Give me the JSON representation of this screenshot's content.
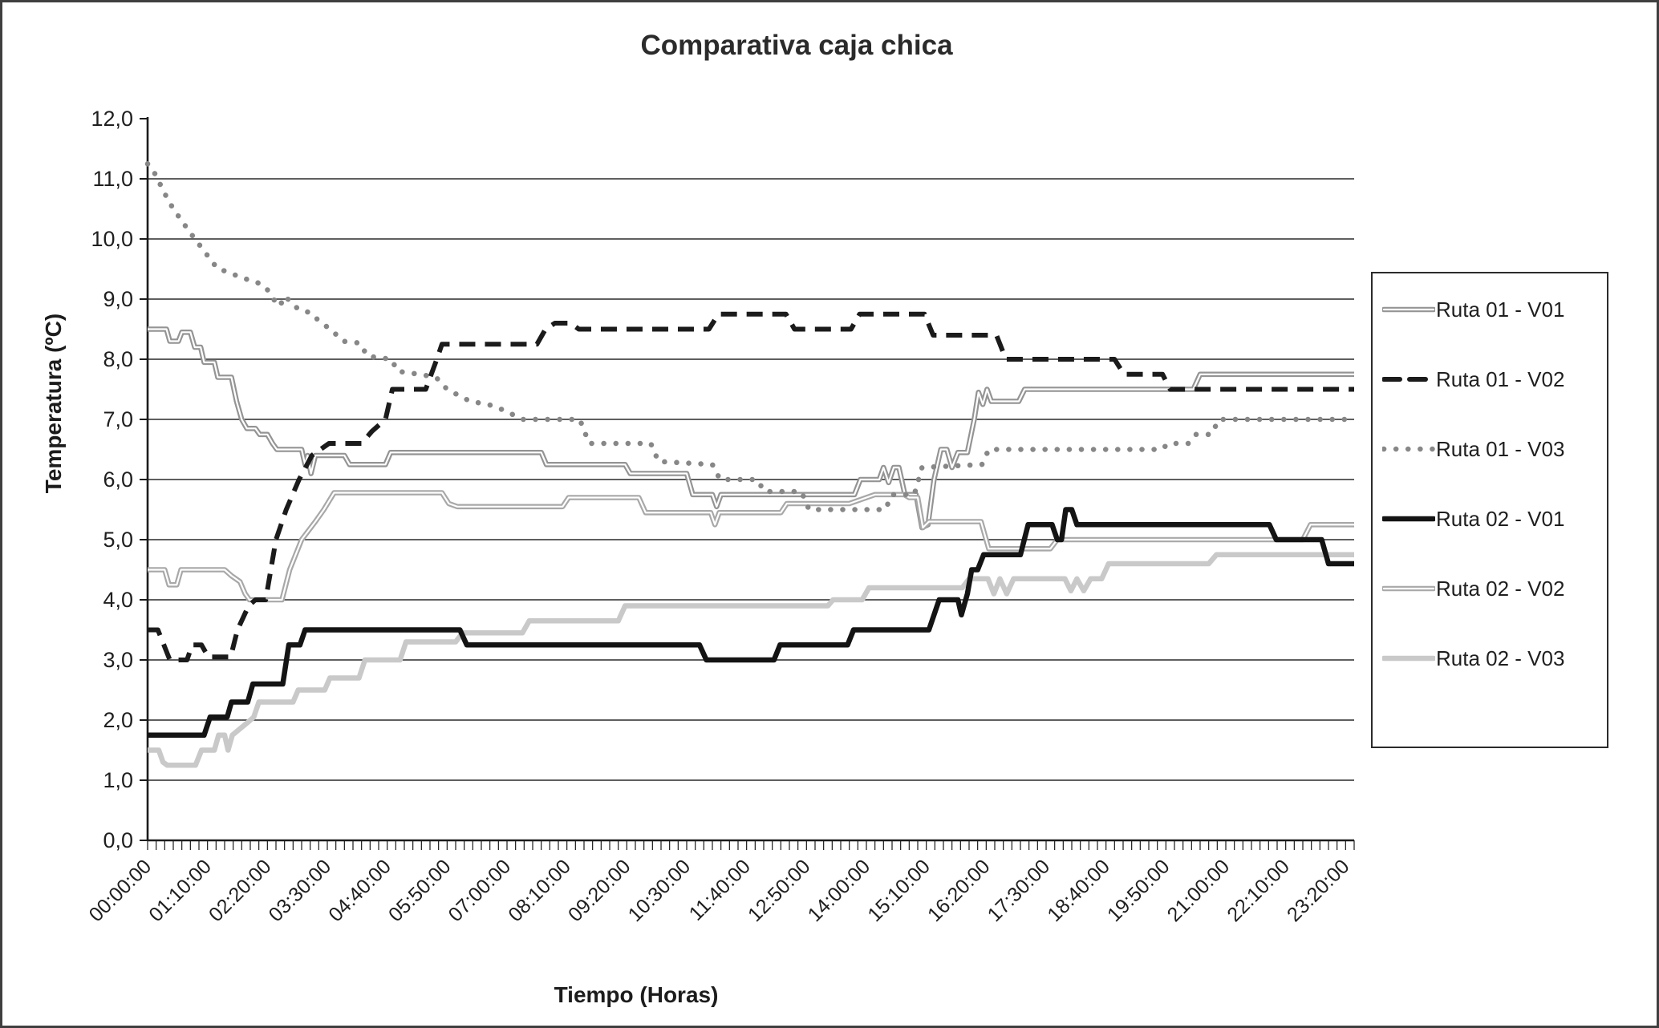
{
  "title": "Comparativa caja chica",
  "y_axis": {
    "title": "Temperatura (ºC)",
    "tick_labels": [
      "0,0",
      "1,0",
      "2,0",
      "3,0",
      "4,0",
      "5,0",
      "6,0",
      "7,0",
      "8,0",
      "9,0",
      "10,0",
      "11,0",
      "12,0"
    ],
    "min": 0,
    "max": 12,
    "grid": "horizontal lines at every 1.0 from 1.0 to 11.0"
  },
  "x_axis": {
    "title": "Tiempo (Horas)",
    "tick_labels": [
      "00:00:00",
      "01:10:00",
      "02:20:00",
      "03:30:00",
      "04:40:00",
      "05:50:00",
      "07:00:00",
      "08:10:00",
      "09:20:00",
      "10:30:00",
      "11:40:00",
      "12:50:00",
      "14:00:00",
      "15:10:00",
      "16:20:00",
      "17:30:00",
      "18:40:00",
      "19:50:00",
      "21:00:00",
      "22:10:00",
      "23:20:00"
    ],
    "label_interval_minutes": 70,
    "minor_tick_minutes": 10,
    "domain_minutes": [
      0,
      1410
    ]
  },
  "colors": {
    "background": "#ffffff",
    "frame_border": "#3f3f3f",
    "gridline": "#2a2a2a",
    "axis": "#1b1b1b",
    "text": "#1f1f1f"
  },
  "chart_data": {
    "type": "line",
    "title": "Comparativa caja chica",
    "xlabel": "Tiempo (Horas)",
    "ylabel": "Temperatura (ºC)",
    "ylim": [
      0,
      12
    ],
    "x_unit": "minutes_since_midnight",
    "legend_position": "right",
    "series": [
      {
        "name": "Ruta 01 - V01",
        "line_style": "double",
        "color": "#949494",
        "points": [
          [
            0,
            8.5
          ],
          [
            22,
            8.5
          ],
          [
            26,
            8.3
          ],
          [
            36,
            8.3
          ],
          [
            40,
            8.45
          ],
          [
            50,
            8.45
          ],
          [
            55,
            8.2
          ],
          [
            62,
            8.2
          ],
          [
            66,
            7.95
          ],
          [
            78,
            7.95
          ],
          [
            82,
            7.7
          ],
          [
            98,
            7.7
          ],
          [
            104,
            7.3
          ],
          [
            110,
            7.0
          ],
          [
            116,
            6.85
          ],
          [
            126,
            6.85
          ],
          [
            131,
            6.75
          ],
          [
            140,
            6.75
          ],
          [
            146,
            6.6
          ],
          [
            151,
            6.5
          ],
          [
            180,
            6.5
          ],
          [
            184,
            6.25
          ],
          [
            187,
            6.4
          ],
          [
            191,
            6.1
          ],
          [
            196,
            6.4
          ],
          [
            230,
            6.4
          ],
          [
            236,
            6.25
          ],
          [
            278,
            6.25
          ],
          [
            284,
            6.45
          ],
          [
            460,
            6.45
          ],
          [
            466,
            6.25
          ],
          [
            558,
            6.25
          ],
          [
            564,
            6.1
          ],
          [
            630,
            6.1
          ],
          [
            637,
            5.75
          ],
          [
            660,
            5.75
          ],
          [
            665,
            5.55
          ],
          [
            670,
            5.75
          ],
          [
            826,
            5.75
          ],
          [
            833,
            6.0
          ],
          [
            855,
            6.0
          ],
          [
            860,
            6.2
          ],
          [
            866,
            5.95
          ],
          [
            872,
            6.2
          ],
          [
            878,
            6.2
          ],
          [
            885,
            5.75
          ],
          [
            898,
            5.75
          ],
          [
            905,
            5.2
          ],
          [
            912,
            5.25
          ],
          [
            919,
            6.0
          ],
          [
            927,
            6.5
          ],
          [
            934,
            6.5
          ],
          [
            940,
            6.2
          ],
          [
            947,
            6.45
          ],
          [
            958,
            6.45
          ],
          [
            966,
            7.0
          ],
          [
            971,
            7.45
          ],
          [
            976,
            7.25
          ],
          [
            981,
            7.5
          ],
          [
            986,
            7.3
          ],
          [
            1018,
            7.3
          ],
          [
            1025,
            7.5
          ],
          [
            1222,
            7.5
          ],
          [
            1230,
            7.75
          ],
          [
            1410,
            7.75
          ]
        ]
      },
      {
        "name": "Ruta 01 - V02",
        "line_style": "dashed",
        "color": "#1b1b1b",
        "points": [
          [
            0,
            3.5
          ],
          [
            12,
            3.5
          ],
          [
            19,
            3.25
          ],
          [
            26,
            3.0
          ],
          [
            46,
            3.0
          ],
          [
            52,
            3.25
          ],
          [
            63,
            3.25
          ],
          [
            71,
            3.05
          ],
          [
            97,
            3.05
          ],
          [
            105,
            3.5
          ],
          [
            118,
            3.9
          ],
          [
            126,
            4.0
          ],
          [
            138,
            4.0
          ],
          [
            150,
            5.0
          ],
          [
            162,
            5.5
          ],
          [
            177,
            6.0
          ],
          [
            192,
            6.4
          ],
          [
            212,
            6.6
          ],
          [
            250,
            6.6
          ],
          [
            262,
            6.8
          ],
          [
            278,
            7.0
          ],
          [
            286,
            7.5
          ],
          [
            325,
            7.5
          ],
          [
            338,
            8.0
          ],
          [
            344,
            8.25
          ],
          [
            455,
            8.25
          ],
          [
            465,
            8.5
          ],
          [
            476,
            8.6
          ],
          [
            494,
            8.6
          ],
          [
            504,
            8.5
          ],
          [
            656,
            8.5
          ],
          [
            667,
            8.75
          ],
          [
            746,
            8.75
          ],
          [
            756,
            8.5
          ],
          [
            822,
            8.5
          ],
          [
            832,
            8.75
          ],
          [
            908,
            8.75
          ],
          [
            918,
            8.4
          ],
          [
            992,
            8.4
          ],
          [
            1003,
            8.0
          ],
          [
            1130,
            8.0
          ],
          [
            1141,
            7.75
          ],
          [
            1186,
            7.75
          ],
          [
            1195,
            7.5
          ],
          [
            1410,
            7.5
          ]
        ]
      },
      {
        "name": "Ruta 01 - V03",
        "line_style": "dotted",
        "color": "#878787",
        "points": [
          [
            0,
            11.25
          ],
          [
            8,
            11.1
          ],
          [
            15,
            10.9
          ],
          [
            22,
            10.7
          ],
          [
            30,
            10.5
          ],
          [
            40,
            10.3
          ],
          [
            50,
            10.1
          ],
          [
            58,
            9.95
          ],
          [
            66,
            9.8
          ],
          [
            74,
            9.65
          ],
          [
            82,
            9.5
          ],
          [
            95,
            9.45
          ],
          [
            110,
            9.35
          ],
          [
            125,
            9.3
          ],
          [
            138,
            9.2
          ],
          [
            147,
            9.0
          ],
          [
            154,
            8.88
          ],
          [
            161,
            9.05
          ],
          [
            170,
            8.9
          ],
          [
            180,
            8.8
          ],
          [
            190,
            8.78
          ],
          [
            203,
            8.6
          ],
          [
            214,
            8.5
          ],
          [
            228,
            8.3
          ],
          [
            248,
            8.27
          ],
          [
            257,
            8.05
          ],
          [
            285,
            8.0
          ],
          [
            292,
            7.8
          ],
          [
            318,
            7.75
          ],
          [
            337,
            7.7
          ],
          [
            350,
            7.5
          ],
          [
            377,
            7.3
          ],
          [
            398,
            7.25
          ],
          [
            417,
            7.15
          ],
          [
            438,
            7.0
          ],
          [
            505,
            7.0
          ],
          [
            516,
            6.6
          ],
          [
            588,
            6.6
          ],
          [
            597,
            6.3
          ],
          [
            660,
            6.25
          ],
          [
            669,
            6.0
          ],
          [
            712,
            6.0
          ],
          [
            721,
            5.8
          ],
          [
            764,
            5.8
          ],
          [
            773,
            5.5
          ],
          [
            862,
            5.5
          ],
          [
            870,
            5.75
          ],
          [
            896,
            5.75
          ],
          [
            905,
            6.2
          ],
          [
            975,
            6.25
          ],
          [
            983,
            6.5
          ],
          [
            1185,
            6.5
          ],
          [
            1193,
            6.6
          ],
          [
            1216,
            6.6
          ],
          [
            1225,
            6.75
          ],
          [
            1243,
            6.75
          ],
          [
            1252,
            7.0
          ],
          [
            1410,
            7.0
          ]
        ]
      },
      {
        "name": "Ruta 02 - V01",
        "line_style": "solid",
        "color": "#141414",
        "points": [
          [
            0,
            1.75
          ],
          [
            66,
            1.75
          ],
          [
            73,
            2.05
          ],
          [
            93,
            2.05
          ],
          [
            98,
            2.3
          ],
          [
            117,
            2.3
          ],
          [
            123,
            2.6
          ],
          [
            158,
            2.6
          ],
          [
            165,
            3.25
          ],
          [
            178,
            3.25
          ],
          [
            184,
            3.5
          ],
          [
            365,
            3.5
          ],
          [
            373,
            3.25
          ],
          [
            645,
            3.25
          ],
          [
            653,
            3.0
          ],
          [
            732,
            3.0
          ],
          [
            739,
            3.25
          ],
          [
            818,
            3.25
          ],
          [
            825,
            3.5
          ],
          [
            913,
            3.5
          ],
          [
            925,
            4.0
          ],
          [
            947,
            4.0
          ],
          [
            951,
            3.75
          ],
          [
            958,
            4.1
          ],
          [
            963,
            4.5
          ],
          [
            970,
            4.5
          ],
          [
            977,
            4.75
          ],
          [
            1020,
            4.75
          ],
          [
            1029,
            5.25
          ],
          [
            1057,
            5.25
          ],
          [
            1063,
            5.0
          ],
          [
            1068,
            5.0
          ],
          [
            1073,
            5.5
          ],
          [
            1080,
            5.5
          ],
          [
            1086,
            5.25
          ],
          [
            1311,
            5.25
          ],
          [
            1319,
            5.0
          ],
          [
            1372,
            5.0
          ],
          [
            1380,
            4.6
          ],
          [
            1410,
            4.6
          ]
        ]
      },
      {
        "name": "Ruta 02 - V02",
        "line_style": "double",
        "color": "#a8a8a8",
        "points": [
          [
            0,
            4.5
          ],
          [
            20,
            4.5
          ],
          [
            25,
            4.25
          ],
          [
            34,
            4.25
          ],
          [
            39,
            4.5
          ],
          [
            90,
            4.5
          ],
          [
            98,
            4.4
          ],
          [
            108,
            4.3
          ],
          [
            114,
            4.1
          ],
          [
            119,
            4.0
          ],
          [
            157,
            4.0
          ],
          [
            166,
            4.5
          ],
          [
            180,
            5.0
          ],
          [
            196,
            5.3
          ],
          [
            206,
            5.5
          ],
          [
            218,
            5.78
          ],
          [
            344,
            5.78
          ],
          [
            352,
            5.6
          ],
          [
            362,
            5.55
          ],
          [
            485,
            5.55
          ],
          [
            492,
            5.7
          ],
          [
            574,
            5.7
          ],
          [
            582,
            5.45
          ],
          [
            658,
            5.45
          ],
          [
            663,
            5.25
          ],
          [
            668,
            5.45
          ],
          [
            740,
            5.45
          ],
          [
            747,
            5.6
          ],
          [
            820,
            5.6
          ],
          [
            850,
            5.75
          ],
          [
            884,
            5.75
          ],
          [
            890,
            5.7
          ],
          [
            900,
            5.7
          ],
          [
            906,
            5.2
          ],
          [
            913,
            5.3
          ],
          [
            974,
            5.3
          ],
          [
            983,
            4.85
          ],
          [
            1055,
            4.85
          ],
          [
            1063,
            5.0
          ],
          [
            1350,
            5.0
          ],
          [
            1359,
            5.25
          ],
          [
            1410,
            5.25
          ]
        ]
      },
      {
        "name": "Ruta 02 - V03",
        "line_style": "solid",
        "color": "#c9c9c9",
        "points": [
          [
            0,
            1.5
          ],
          [
            13,
            1.5
          ],
          [
            18,
            1.3
          ],
          [
            23,
            1.25
          ],
          [
            56,
            1.25
          ],
          [
            63,
            1.5
          ],
          [
            78,
            1.5
          ],
          [
            83,
            1.75
          ],
          [
            90,
            1.75
          ],
          [
            94,
            1.5
          ],
          [
            99,
            1.75
          ],
          [
            116,
            1.95
          ],
          [
            124,
            2.05
          ],
          [
            130,
            2.3
          ],
          [
            170,
            2.3
          ],
          [
            176,
            2.5
          ],
          [
            207,
            2.5
          ],
          [
            213,
            2.7
          ],
          [
            247,
            2.7
          ],
          [
            254,
            3.0
          ],
          [
            295,
            3.0
          ],
          [
            302,
            3.3
          ],
          [
            360,
            3.3
          ],
          [
            368,
            3.45
          ],
          [
            438,
            3.45
          ],
          [
            446,
            3.65
          ],
          [
            550,
            3.65
          ],
          [
            558,
            3.9
          ],
          [
            795,
            3.9
          ],
          [
            801,
            4.0
          ],
          [
            835,
            4.0
          ],
          [
            843,
            4.2
          ],
          [
            952,
            4.2
          ],
          [
            960,
            4.35
          ],
          [
            982,
            4.35
          ],
          [
            989,
            4.1
          ],
          [
            996,
            4.35
          ],
          [
            1004,
            4.1
          ],
          [
            1012,
            4.35
          ],
          [
            1072,
            4.35
          ],
          [
            1079,
            4.15
          ],
          [
            1086,
            4.35
          ],
          [
            1094,
            4.15
          ],
          [
            1102,
            4.35
          ],
          [
            1115,
            4.35
          ],
          [
            1123,
            4.6
          ],
          [
            1240,
            4.6
          ],
          [
            1249,
            4.75
          ],
          [
            1410,
            4.75
          ]
        ]
      }
    ]
  }
}
